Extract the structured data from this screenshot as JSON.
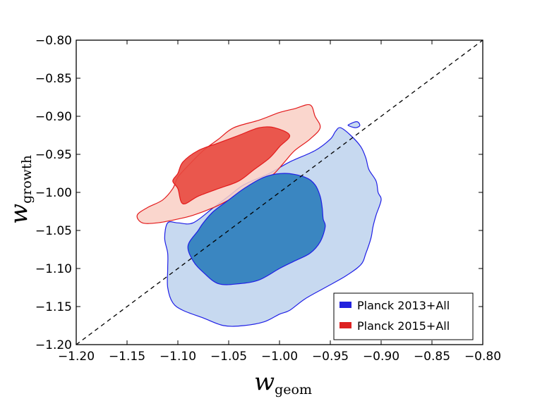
{
  "chart_data": {
    "type": "contour",
    "xlabel": {
      "symbol": "w",
      "subscript": "geom"
    },
    "ylabel": {
      "symbol": "w",
      "subscript": "growth"
    },
    "xlim": [
      -1.2,
      -0.8
    ],
    "ylim": [
      -1.2,
      -0.8
    ],
    "x_ticks": [
      -1.2,
      -1.15,
      -1.1,
      -1.05,
      -1.0,
      -0.95,
      -0.9,
      -0.85,
      -0.8
    ],
    "y_ticks": [
      -1.2,
      -1.15,
      -1.1,
      -1.05,
      -1.0,
      -0.95,
      -0.9,
      -0.85,
      -0.8
    ],
    "x_tick_labels": [
      "−1.20",
      "−1.15",
      "−1.10",
      "−1.05",
      "−1.00",
      "−0.95",
      "−0.90",
      "−0.85",
      "−0.80"
    ],
    "y_tick_labels": [
      "−1.20",
      "−1.15",
      "−1.10",
      "−1.05",
      "−1.00",
      "−0.95",
      "−0.90",
      "−0.85",
      "−0.80"
    ],
    "reference_line": {
      "style": "dashed",
      "from": [
        -1.2,
        -1.2
      ],
      "to": [
        -0.8,
        -0.8
      ],
      "description": "w_geom = w_growth"
    },
    "legend_position": "lower-right",
    "series": [
      {
        "name": "Planck 2013+All",
        "color": "#2222dd",
        "fill_outer": "#c7d9f0",
        "fill_inner": "#3a86c1",
        "edge": "#1f1fe6",
        "contour_95": [
          [
            -1.085,
            -1.04
          ],
          [
            -1.065,
            -1.02
          ],
          [
            -1.05,
            -1.005
          ],
          [
            -1.035,
            -0.99
          ],
          [
            -1.01,
            -0.975
          ],
          [
            -0.99,
            -0.96
          ],
          [
            -0.965,
            -0.945
          ],
          [
            -0.95,
            -0.93
          ],
          [
            -0.945,
            -0.92
          ],
          [
            -0.94,
            -0.915
          ],
          [
            -0.93,
            -0.925
          ],
          [
            -0.92,
            -0.94
          ],
          [
            -0.915,
            -0.955
          ],
          [
            -0.912,
            -0.97
          ],
          [
            -0.905,
            -0.985
          ],
          [
            -0.903,
            -1.0
          ],
          [
            -0.9,
            -1.01
          ],
          [
            -0.905,
            -1.03
          ],
          [
            -0.908,
            -1.045
          ],
          [
            -0.91,
            -1.06
          ],
          [
            -0.915,
            -1.08
          ],
          [
            -0.92,
            -1.095
          ],
          [
            -0.935,
            -1.11
          ],
          [
            -0.955,
            -1.125
          ],
          [
            -0.975,
            -1.14
          ],
          [
            -0.99,
            -1.155
          ],
          [
            -1.0,
            -1.16
          ],
          [
            -1.015,
            -1.17
          ],
          [
            -1.035,
            -1.175
          ],
          [
            -1.055,
            -1.175
          ],
          [
            -1.075,
            -1.165
          ],
          [
            -1.095,
            -1.155
          ],
          [
            -1.105,
            -1.145
          ],
          [
            -1.11,
            -1.125
          ],
          [
            -1.11,
            -1.1
          ],
          [
            -1.11,
            -1.08
          ],
          [
            -1.113,
            -1.06
          ],
          [
            -1.11,
            -1.04
          ],
          [
            -1.1,
            -1.04
          ]
        ],
        "contour_68": [
          [
            -1.075,
            -1.04
          ],
          [
            -1.065,
            -1.025
          ],
          [
            -1.05,
            -1.01
          ],
          [
            -1.035,
            -0.995
          ],
          [
            -1.015,
            -0.98
          ],
          [
            -0.995,
            -0.975
          ],
          [
            -0.975,
            -0.98
          ],
          [
            -0.965,
            -0.99
          ],
          [
            -0.96,
            -1.005
          ],
          [
            -0.958,
            -1.02
          ],
          [
            -0.957,
            -1.035
          ],
          [
            -0.955,
            -1.045
          ],
          [
            -0.96,
            -1.065
          ],
          [
            -0.97,
            -1.08
          ],
          [
            -0.985,
            -1.09
          ],
          [
            -1.0,
            -1.1
          ],
          [
            -1.02,
            -1.115
          ],
          [
            -1.04,
            -1.12
          ],
          [
            -1.06,
            -1.12
          ],
          [
            -1.075,
            -1.105
          ],
          [
            -1.085,
            -1.09
          ],
          [
            -1.09,
            -1.07
          ],
          [
            -1.08,
            -1.05
          ]
        ],
        "island_95": [
          [
            -0.932,
            -0.911
          ],
          [
            -0.924,
            -0.907
          ],
          [
            -0.921,
            -0.912
          ],
          [
            -0.925,
            -0.915
          ],
          [
            -0.931,
            -0.913
          ]
        ]
      },
      {
        "name": "Planck 2015+All",
        "color": "#dd2222",
        "fill_outer": "#f9cfc4",
        "fill_inner": "#e8493f",
        "edge": "#e31a1c",
        "contour_95": [
          [
            -1.14,
            -1.03
          ],
          [
            -1.13,
            -1.02
          ],
          [
            -1.115,
            -1.01
          ],
          [
            -1.105,
            -0.995
          ],
          [
            -1.1,
            -0.98
          ],
          [
            -1.09,
            -0.965
          ],
          [
            -1.075,
            -0.945
          ],
          [
            -1.06,
            -0.93
          ],
          [
            -1.045,
            -0.915
          ],
          [
            -1.02,
            -0.905
          ],
          [
            -1.0,
            -0.895
          ],
          [
            -0.985,
            -0.89
          ],
          [
            -0.97,
            -0.885
          ],
          [
            -0.965,
            -0.9
          ],
          [
            -0.96,
            -0.915
          ],
          [
            -0.97,
            -0.93
          ],
          [
            -0.985,
            -0.945
          ],
          [
            -0.995,
            -0.96
          ],
          [
            -1.005,
            -0.975
          ],
          [
            -1.015,
            -0.985
          ],
          [
            -1.03,
            -0.995
          ],
          [
            -1.05,
            -1.01
          ],
          [
            -1.065,
            -1.02
          ],
          [
            -1.085,
            -1.03
          ],
          [
            -1.1,
            -1.035
          ],
          [
            -1.12,
            -1.04
          ],
          [
            -1.135,
            -1.04
          ]
        ],
        "contour_68": [
          [
            -1.1,
            -0.995
          ],
          [
            -1.105,
            -0.985
          ],
          [
            -1.1,
            -0.975
          ],
          [
            -1.095,
            -0.96
          ],
          [
            -1.08,
            -0.945
          ],
          [
            -1.06,
            -0.935
          ],
          [
            -1.04,
            -0.925
          ],
          [
            -1.02,
            -0.915
          ],
          [
            -1.005,
            -0.915
          ],
          [
            -0.99,
            -0.925
          ],
          [
            -1.0,
            -0.94
          ],
          [
            -1.01,
            -0.955
          ],
          [
            -1.025,
            -0.97
          ],
          [
            -1.04,
            -0.985
          ],
          [
            -1.06,
            -0.995
          ],
          [
            -1.08,
            -1.005
          ],
          [
            -1.095,
            -1.015
          ]
        ]
      }
    ]
  }
}
